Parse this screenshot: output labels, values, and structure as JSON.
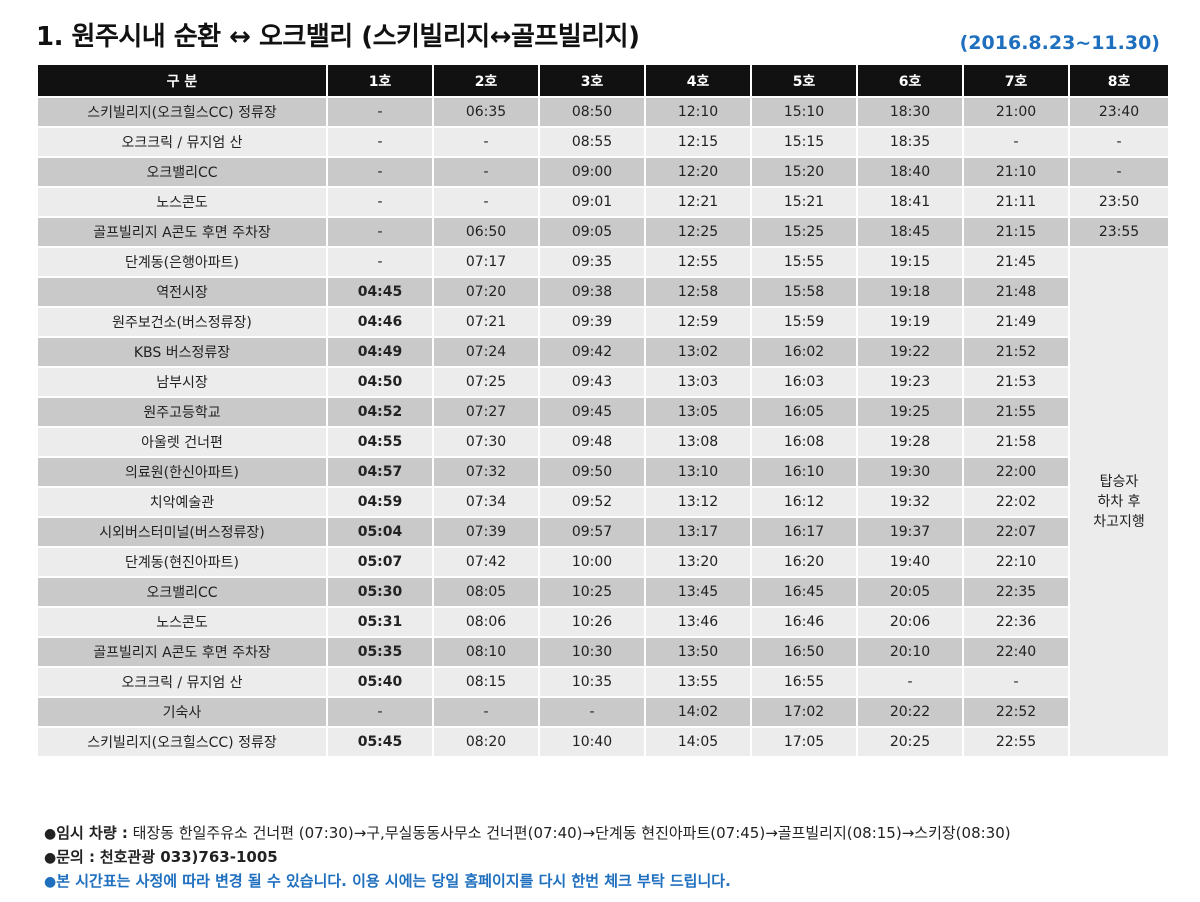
{
  "title": "1. 원주시내 순환 ↔ 오크밸리 (스키빌리지↔골프빌리지)",
  "period": "(2016.8.23~11.30)",
  "headers": [
    "구 분",
    "1호",
    "2호",
    "3호",
    "4호",
    "5호",
    "6호",
    "7호",
    "8호"
  ],
  "rows": [
    {
      "stop": "스키빌리지(오크힐스CC) 정류장",
      "times": [
        "-",
        "06:35",
        "08:50",
        "12:10",
        "15:10",
        "18:30",
        "21:00",
        "23:40"
      ]
    },
    {
      "stop": "오크크릭 / 뮤지엄 산",
      "times": [
        "-",
        "-",
        "08:55",
        "12:15",
        "15:15",
        "18:35",
        "-",
        "-"
      ]
    },
    {
      "stop": "오크밸리CC",
      "times": [
        "-",
        "-",
        "09:00",
        "12:20",
        "15:20",
        "18:40",
        "21:10",
        "-"
      ]
    },
    {
      "stop": "노스콘도",
      "times": [
        "-",
        "-",
        "09:01",
        "12:21",
        "15:21",
        "18:41",
        "21:11",
        "23:50"
      ]
    },
    {
      "stop": "골프빌리지 A콘도 후면 주차장",
      "times": [
        "-",
        "06:50",
        "09:05",
        "12:25",
        "15:25",
        "18:45",
        "21:15",
        "23:55"
      ]
    },
    {
      "stop": "단계동(은행아파트)",
      "times": [
        "-",
        "07:17",
        "09:35",
        "12:55",
        "15:55",
        "19:15",
        "21:45"
      ]
    },
    {
      "stop": "역전시장",
      "times": [
        "04:45",
        "07:20",
        "09:38",
        "12:58",
        "15:58",
        "19:18",
        "21:48"
      ]
    },
    {
      "stop": "원주보건소(버스정류장)",
      "times": [
        "04:46",
        "07:21",
        "09:39",
        "12:59",
        "15:59",
        "19:19",
        "21:49"
      ]
    },
    {
      "stop": "KBS 버스정류장",
      "times": [
        "04:49",
        "07:24",
        "09:42",
        "13:02",
        "16:02",
        "19:22",
        "21:52"
      ]
    },
    {
      "stop": "남부시장",
      "times": [
        "04:50",
        "07:25",
        "09:43",
        "13:03",
        "16:03",
        "19:23",
        "21:53"
      ]
    },
    {
      "stop": "원주고등학교",
      "times": [
        "04:52",
        "07:27",
        "09:45",
        "13:05",
        "16:05",
        "19:25",
        "21:55"
      ]
    },
    {
      "stop": "아울렛 건너편",
      "times": [
        "04:55",
        "07:30",
        "09:48",
        "13:08",
        "16:08",
        "19:28",
        "21:58"
      ]
    },
    {
      "stop": "의료원(한신아파트)",
      "times": [
        "04:57",
        "07:32",
        "09:50",
        "13:10",
        "16:10",
        "19:30",
        "22:00"
      ]
    },
    {
      "stop": "치악예술관",
      "times": [
        "04:59",
        "07:34",
        "09:52",
        "13:12",
        "16:12",
        "19:32",
        "22:02"
      ]
    },
    {
      "stop": "시외버스터미널(버스정류장)",
      "times": [
        "05:04",
        "07:39",
        "09:57",
        "13:17",
        "16:17",
        "19:37",
        "22:07"
      ]
    },
    {
      "stop": "단계동(현진아파트)",
      "times": [
        "05:07",
        "07:42",
        "10:00",
        "13:20",
        "16:20",
        "19:40",
        "22:10"
      ]
    },
    {
      "stop": "오크밸리CC",
      "times": [
        "05:30",
        "08:05",
        "10:25",
        "13:45",
        "16:45",
        "20:05",
        "22:35"
      ]
    },
    {
      "stop": "노스콘도",
      "times": [
        "05:31",
        "08:06",
        "10:26",
        "13:46",
        "16:46",
        "20:06",
        "22:36"
      ]
    },
    {
      "stop": "골프빌리지 A콘도 후면 주차장",
      "times": [
        "05:35",
        "08:10",
        "10:30",
        "13:50",
        "16:50",
        "20:10",
        "22:40"
      ]
    },
    {
      "stop": "오크크릭 / 뮤지엄 산",
      "times": [
        "05:40",
        "08:15",
        "10:35",
        "13:55",
        "16:55",
        "-",
        "-"
      ]
    },
    {
      "stop": "기숙사",
      "times": [
        "-",
        "-",
        "-",
        "14:02",
        "17:02",
        "20:22",
        "22:52"
      ]
    },
    {
      "stop": "스키빌리지(오크힐스CC) 정류장",
      "times": [
        "05:45",
        "08:20",
        "10:40",
        "14:05",
        "17:05",
        "20:25",
        "22:55"
      ]
    }
  ],
  "merged_note": [
    "탑승자",
    "하차 후",
    "차고지행"
  ],
  "notes": {
    "temp_label": "임시 차량 :",
    "temp_text": "태장동 한일주유소 건너편 (07:30)→구,무실동동사무소 건너편(07:40)→단계동 현진아파트(07:45)→골프빌리지(08:15)→스키장(08:30)",
    "contact_label": "문의 :",
    "contact_text": "천호관광 033)763-1005",
    "notice": "본 시간표는 사정에 따라 변경 될 수 있습니다. 이용 시에는 당일 홈페이지를 다시 한번 체크 부탁 드립니다.",
    "bullet": "●"
  },
  "colors": {
    "header_bg": "#111111",
    "shade": "#c9c9c9",
    "light": "#ececec",
    "accent": "#1f6fbf"
  }
}
